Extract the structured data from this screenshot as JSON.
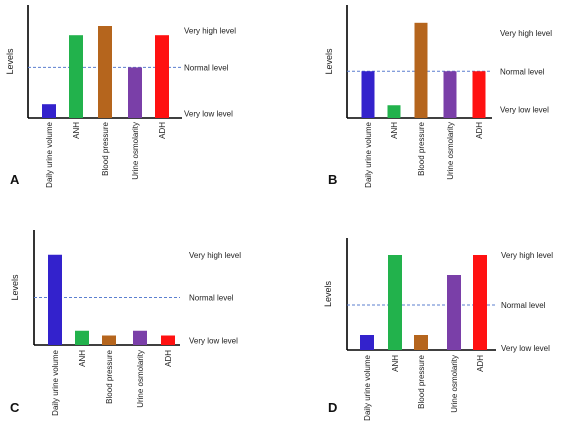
{
  "figure": {
    "y_axis_label": "Levels",
    "categories": [
      "Daily urine volume",
      "ANH",
      "Blood pressure",
      "Urine osmolarity",
      "ADH"
    ],
    "level_labels": [
      "Very high level",
      "Normal level",
      "Very low level"
    ],
    "colors": {
      "Daily urine volume": "#3322cc",
      "ANH": "#22b24c",
      "Blood pressure": "#b5651d",
      "Urine osmolarity": "#7a3fa8",
      "ADH": "#ff1111",
      "normal_line": "#5b7fcf"
    }
  },
  "chart_data": [
    {
      "panel": "A",
      "type": "bar",
      "categories": [
        "Daily urine volume",
        "ANH",
        "Blood pressure",
        "Urine osmolarity",
        "ADH"
      ],
      "values": [
        0.15,
        0.9,
        1.0,
        0.55,
        0.9
      ],
      "ylabel": "Levels",
      "level_ticks": [
        {
          "label": "Very high level",
          "level": 0.95
        },
        {
          "label": "Normal level",
          "level": 0.55
        },
        {
          "label": "Very low level",
          "level": 0.05
        }
      ],
      "reference_line": {
        "label": "Normal level",
        "level": 0.55
      }
    },
    {
      "panel": "B",
      "type": "bar",
      "categories": [
        "Daily urine volume",
        "ANH",
        "Blood pressure",
        "Urine osmolarity",
        "ADH"
      ],
      "values": [
        0.55,
        0.15,
        1.12,
        0.55,
        0.55
      ],
      "ylabel": "Levels",
      "level_ticks": [
        {
          "label": "Very high level",
          "level": 1.0
        },
        {
          "label": "Normal level",
          "level": 0.55
        },
        {
          "label": "Very low level",
          "level": 0.1
        }
      ],
      "reference_line": {
        "label": "Normal level",
        "level": 0.55
      }
    },
    {
      "panel": "C",
      "type": "bar",
      "categories": [
        "Daily urine volume",
        "ANH",
        "Blood pressure",
        "Urine osmolarity",
        "ADH"
      ],
      "values": [
        0.95,
        0.15,
        0.1,
        0.15,
        0.1
      ],
      "ylabel": "Levels",
      "level_ticks": [
        {
          "label": "Very high level",
          "level": 0.95
        },
        {
          "label": "Normal level",
          "level": 0.5
        },
        {
          "label": "Very low level",
          "level": 0.05
        }
      ],
      "reference_line": {
        "label": "Normal level",
        "level": 0.5
      }
    },
    {
      "panel": "D",
      "type": "bar",
      "categories": [
        "Daily urine volume",
        "ANH",
        "Blood pressure",
        "Urine osmolarity",
        "ADH"
      ],
      "values": [
        0.15,
        0.95,
        0.15,
        0.75,
        0.95
      ],
      "ylabel": "Levels",
      "level_ticks": [
        {
          "label": "Very high level",
          "level": 0.95
        },
        {
          "label": "Normal level",
          "level": 0.45
        },
        {
          "label": "Very low level",
          "level": 0.02
        }
      ],
      "reference_line": {
        "label": "Normal level",
        "level": 0.45
      }
    }
  ]
}
